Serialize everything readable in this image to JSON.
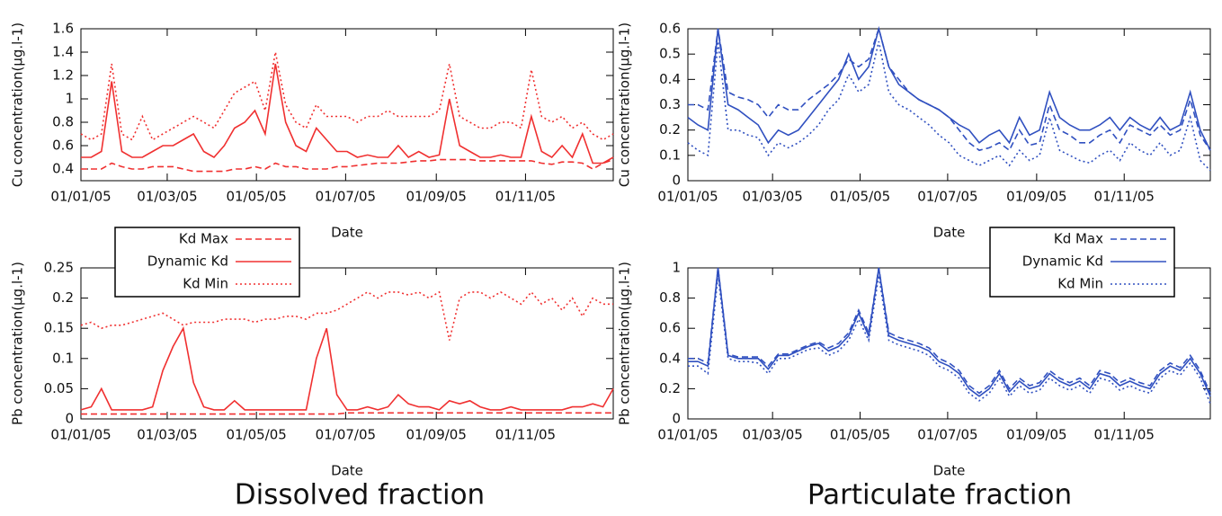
{
  "figure_captions": [
    "Dissolved fraction",
    "Particulate fraction"
  ],
  "chart_data": [
    {
      "type": "line",
      "y_label": "Cu concentration(µg.l-1)",
      "x_label": "Date",
      "x": [
        "01/01/05",
        "08/01/05",
        "15/01/05",
        "22/01/05",
        "29/01/05",
        "05/02/05",
        "12/02/05",
        "19/02/05",
        "26/02/05",
        "05/03/05",
        "12/03/05",
        "19/03/05",
        "26/03/05",
        "02/04/05",
        "09/04/05",
        "16/04/05",
        "23/04/05",
        "30/04/05",
        "07/05/05",
        "14/05/05",
        "21/05/05",
        "28/05/05",
        "04/06/05",
        "11/06/05",
        "18/06/05",
        "25/06/05",
        "02/07/05",
        "09/07/05",
        "16/07/05",
        "23/07/05",
        "30/07/05",
        "06/08/05",
        "13/08/05",
        "20/08/05",
        "27/08/05",
        "03/09/05",
        "10/09/05",
        "17/09/05",
        "24/09/05",
        "01/10/05",
        "08/10/05",
        "15/10/05",
        "22/10/05",
        "29/10/05",
        "05/11/05",
        "12/11/05",
        "19/11/05",
        "26/11/05",
        "03/12/05",
        "10/12/05",
        "17/12/05",
        "24/12/05",
        "31/12/05"
      ],
      "xlim": [
        "01/01/05",
        "31/12/05"
      ],
      "xticks": [
        "01/01/05",
        "01/03/05",
        "01/05/05",
        "01/07/05",
        "01/09/05",
        "01/11/05"
      ],
      "ylim": [
        0.3,
        1.6
      ],
      "yticks": [
        0.4,
        0.6,
        0.8,
        1,
        1.2,
        1.4,
        1.6
      ],
      "series": [
        {
          "name": "Kd Max",
          "color": "#f03030",
          "dash": "dashed",
          "values": [
            0.4,
            0.4,
            0.4,
            0.45,
            0.42,
            0.4,
            0.4,
            0.42,
            0.42,
            0.42,
            0.4,
            0.38,
            0.38,
            0.38,
            0.38,
            0.4,
            0.4,
            0.42,
            0.4,
            0.45,
            0.42,
            0.42,
            0.4,
            0.4,
            0.4,
            0.42,
            0.42,
            0.43,
            0.44,
            0.45,
            0.45,
            0.45,
            0.46,
            0.47,
            0.47,
            0.48,
            0.48,
            0.48,
            0.48,
            0.47,
            0.47,
            0.47,
            0.47,
            0.47,
            0.47,
            0.45,
            0.44,
            0.46,
            0.46,
            0.45,
            0.4,
            0.45,
            0.48
          ]
        },
        {
          "name": "Dynamic Kd",
          "color": "#f03030",
          "dash": "solid",
          "values": [
            0.5,
            0.5,
            0.55,
            1.15,
            0.55,
            0.5,
            0.5,
            0.55,
            0.6,
            0.6,
            0.65,
            0.7,
            0.55,
            0.5,
            0.6,
            0.75,
            0.8,
            0.9,
            0.7,
            1.3,
            0.8,
            0.6,
            0.55,
            0.75,
            0.65,
            0.55,
            0.55,
            0.5,
            0.52,
            0.5,
            0.5,
            0.6,
            0.5,
            0.55,
            0.5,
            0.52,
            1.0,
            0.6,
            0.55,
            0.5,
            0.5,
            0.52,
            0.5,
            0.5,
            0.85,
            0.55,
            0.5,
            0.6,
            0.5,
            0.7,
            0.45,
            0.45,
            0.5
          ]
        },
        {
          "name": "Kd Min",
          "color": "#f03030",
          "dash": "dotted",
          "values": [
            0.7,
            0.65,
            0.7,
            1.3,
            0.7,
            0.65,
            0.85,
            0.65,
            0.7,
            0.75,
            0.8,
            0.85,
            0.8,
            0.75,
            0.9,
            1.05,
            1.1,
            1.15,
            0.9,
            1.4,
            0.95,
            0.8,
            0.75,
            0.95,
            0.85,
            0.85,
            0.85,
            0.8,
            0.85,
            0.85,
            0.9,
            0.85,
            0.85,
            0.85,
            0.85,
            0.9,
            1.3,
            0.85,
            0.8,
            0.75,
            0.75,
            0.8,
            0.8,
            0.75,
            1.25,
            0.85,
            0.8,
            0.85,
            0.75,
            0.8,
            0.7,
            0.65,
            0.7
          ]
        }
      ]
    },
    {
      "type": "line",
      "y_label": "Pb concentration(µg.l-1)",
      "x_label": "Date",
      "legend": "upper left",
      "x": [
        "01/01/05",
        "08/01/05",
        "15/01/05",
        "22/01/05",
        "29/01/05",
        "05/02/05",
        "12/02/05",
        "19/02/05",
        "26/02/05",
        "05/03/05",
        "12/03/05",
        "19/03/05",
        "26/03/05",
        "02/04/05",
        "09/04/05",
        "16/04/05",
        "23/04/05",
        "30/04/05",
        "07/05/05",
        "14/05/05",
        "21/05/05",
        "28/05/05",
        "04/06/05",
        "11/06/05",
        "18/06/05",
        "25/06/05",
        "02/07/05",
        "09/07/05",
        "16/07/05",
        "23/07/05",
        "30/07/05",
        "06/08/05",
        "13/08/05",
        "20/08/05",
        "27/08/05",
        "03/09/05",
        "10/09/05",
        "17/09/05",
        "24/09/05",
        "01/10/05",
        "08/10/05",
        "15/10/05",
        "22/10/05",
        "29/10/05",
        "05/11/05",
        "12/11/05",
        "19/11/05",
        "26/11/05",
        "03/12/05",
        "10/12/05",
        "17/12/05",
        "24/12/05",
        "31/12/05"
      ],
      "xlim": [
        "01/01/05",
        "31/12/05"
      ],
      "xticks": [
        "01/01/05",
        "01/03/05",
        "01/05/05",
        "01/07/05",
        "01/09/05",
        "01/11/05"
      ],
      "ylim": [
        0,
        0.25
      ],
      "yticks": [
        0,
        0.05,
        0.1,
        0.15,
        0.2,
        0.25
      ],
      "series": [
        {
          "name": "Kd Max",
          "color": "#f03030",
          "dash": "dashed",
          "values": [
            0.008,
            0.008,
            0.008,
            0.008,
            0.008,
            0.008,
            0.008,
            0.008,
            0.008,
            0.008,
            0.008,
            0.008,
            0.008,
            0.008,
            0.008,
            0.008,
            0.008,
            0.008,
            0.008,
            0.008,
            0.008,
            0.008,
            0.008,
            0.008,
            0.008,
            0.008,
            0.01,
            0.01,
            0.01,
            0.01,
            0.01,
            0.01,
            0.01,
            0.01,
            0.01,
            0.01,
            0.01,
            0.01,
            0.01,
            0.01,
            0.01,
            0.01,
            0.01,
            0.01,
            0.01,
            0.01,
            0.01,
            0.01,
            0.01,
            0.01,
            0.01,
            0.01,
            0.01
          ]
        },
        {
          "name": "Dynamic Kd",
          "color": "#f03030",
          "dash": "solid",
          "values": [
            0.015,
            0.02,
            0.05,
            0.015,
            0.015,
            0.015,
            0.015,
            0.02,
            0.08,
            0.12,
            0.15,
            0.06,
            0.02,
            0.015,
            0.015,
            0.03,
            0.015,
            0.015,
            0.015,
            0.015,
            0.015,
            0.015,
            0.015,
            0.1,
            0.15,
            0.04,
            0.015,
            0.015,
            0.02,
            0.015,
            0.02,
            0.04,
            0.025,
            0.02,
            0.02,
            0.015,
            0.03,
            0.025,
            0.03,
            0.02,
            0.015,
            0.015,
            0.02,
            0.015,
            0.015,
            0.015,
            0.015,
            0.015,
            0.02,
            0.02,
            0.025,
            0.02,
            0.05
          ]
        },
        {
          "name": "Kd Min",
          "color": "#f03030",
          "dash": "dotted",
          "values": [
            0.155,
            0.16,
            0.15,
            0.155,
            0.155,
            0.16,
            0.165,
            0.17,
            0.175,
            0.165,
            0.155,
            0.16,
            0.16,
            0.16,
            0.165,
            0.165,
            0.165,
            0.16,
            0.165,
            0.165,
            0.17,
            0.17,
            0.165,
            0.175,
            0.175,
            0.18,
            0.19,
            0.2,
            0.21,
            0.2,
            0.21,
            0.21,
            0.205,
            0.21,
            0.2,
            0.21,
            0.13,
            0.2,
            0.21,
            0.21,
            0.2,
            0.21,
            0.2,
            0.19,
            0.21,
            0.19,
            0.2,
            0.18,
            0.2,
            0.17,
            0.2,
            0.19,
            0.19
          ]
        }
      ]
    },
    {
      "type": "line",
      "y_label": "Cu concentration(µg.l-1)",
      "x_label": "Date",
      "x": [
        "01/01/05",
        "08/01/05",
        "15/01/05",
        "22/01/05",
        "29/01/05",
        "05/02/05",
        "12/02/05",
        "19/02/05",
        "26/02/05",
        "05/03/05",
        "12/03/05",
        "19/03/05",
        "26/03/05",
        "02/04/05",
        "09/04/05",
        "16/04/05",
        "23/04/05",
        "30/04/05",
        "07/05/05",
        "14/05/05",
        "21/05/05",
        "28/05/05",
        "04/06/05",
        "11/06/05",
        "18/06/05",
        "25/06/05",
        "02/07/05",
        "09/07/05",
        "16/07/05",
        "23/07/05",
        "30/07/05",
        "06/08/05",
        "13/08/05",
        "20/08/05",
        "27/08/05",
        "03/09/05",
        "10/09/05",
        "17/09/05",
        "24/09/05",
        "01/10/05",
        "08/10/05",
        "15/10/05",
        "22/10/05",
        "29/10/05",
        "05/11/05",
        "12/11/05",
        "19/11/05",
        "26/11/05",
        "03/12/05",
        "10/12/05",
        "17/12/05",
        "24/12/05",
        "31/12/05"
      ],
      "xlim": [
        "01/01/05",
        "31/12/05"
      ],
      "xticks": [
        "01/01/05",
        "01/03/05",
        "01/05/05",
        "01/07/05",
        "01/09/05",
        "01/11/05"
      ],
      "ylim": [
        0,
        0.6
      ],
      "yticks": [
        0,
        0.1,
        0.2,
        0.3,
        0.4,
        0.5,
        0.6
      ],
      "series": [
        {
          "name": "Kd Max",
          "color": "#3050c0",
          "dash": "dashed",
          "values": [
            0.3,
            0.3,
            0.28,
            0.6,
            0.35,
            0.33,
            0.32,
            0.3,
            0.25,
            0.3,
            0.28,
            0.28,
            0.32,
            0.35,
            0.38,
            0.42,
            0.48,
            0.45,
            0.48,
            0.6,
            0.45,
            0.4,
            0.35,
            0.32,
            0.3,
            0.28,
            0.25,
            0.2,
            0.15,
            0.12,
            0.13,
            0.15,
            0.12,
            0.2,
            0.14,
            0.15,
            0.3,
            0.2,
            0.18,
            0.15,
            0.15,
            0.18,
            0.2,
            0.15,
            0.22,
            0.2,
            0.18,
            0.22,
            0.18,
            0.2,
            0.32,
            0.18,
            0.12
          ]
        },
        {
          "name": "Dynamic Kd",
          "color": "#3050c0",
          "dash": "solid",
          "values": [
            0.25,
            0.22,
            0.2,
            0.6,
            0.3,
            0.28,
            0.25,
            0.22,
            0.15,
            0.2,
            0.18,
            0.2,
            0.25,
            0.3,
            0.35,
            0.4,
            0.5,
            0.4,
            0.45,
            0.6,
            0.45,
            0.38,
            0.35,
            0.32,
            0.3,
            0.28,
            0.25,
            0.22,
            0.2,
            0.15,
            0.18,
            0.2,
            0.15,
            0.25,
            0.18,
            0.2,
            0.35,
            0.25,
            0.22,
            0.2,
            0.2,
            0.22,
            0.25,
            0.2,
            0.25,
            0.22,
            0.2,
            0.25,
            0.2,
            0.22,
            0.35,
            0.2,
            0.12
          ]
        },
        {
          "name": "Kd Min",
          "color": "#3050c0",
          "dash": "dotted",
          "values": [
            0.15,
            0.12,
            0.1,
            0.55,
            0.2,
            0.2,
            0.18,
            0.17,
            0.1,
            0.15,
            0.13,
            0.15,
            0.18,
            0.22,
            0.28,
            0.32,
            0.42,
            0.35,
            0.38,
            0.55,
            0.35,
            0.3,
            0.28,
            0.25,
            0.22,
            0.18,
            0.15,
            0.1,
            0.08,
            0.06,
            0.08,
            0.1,
            0.06,
            0.12,
            0.08,
            0.1,
            0.25,
            0.12,
            0.1,
            0.08,
            0.07,
            0.1,
            0.12,
            0.08,
            0.15,
            0.12,
            0.1,
            0.15,
            0.1,
            0.12,
            0.25,
            0.08,
            0.04
          ]
        }
      ]
    },
    {
      "type": "line",
      "y_label": "Pb concentration(µg.l-1)",
      "x_label": "Date",
      "legend": "upper right",
      "x": [
        "01/01/05",
        "08/01/05",
        "15/01/05",
        "22/01/05",
        "29/01/05",
        "05/02/05",
        "12/02/05",
        "19/02/05",
        "26/02/05",
        "05/03/05",
        "12/03/05",
        "19/03/05",
        "26/03/05",
        "02/04/05",
        "09/04/05",
        "16/04/05",
        "23/04/05",
        "30/04/05",
        "07/05/05",
        "14/05/05",
        "21/05/05",
        "28/05/05",
        "04/06/05",
        "11/06/05",
        "18/06/05",
        "25/06/05",
        "02/07/05",
        "09/07/05",
        "16/07/05",
        "23/07/05",
        "30/07/05",
        "06/08/05",
        "13/08/05",
        "20/08/05",
        "27/08/05",
        "03/09/05",
        "10/09/05",
        "17/09/05",
        "24/09/05",
        "01/10/05",
        "08/10/05",
        "15/10/05",
        "22/10/05",
        "29/10/05",
        "05/11/05",
        "12/11/05",
        "19/11/05",
        "26/11/05",
        "03/12/05",
        "10/12/05",
        "17/12/05",
        "24/12/05",
        "31/12/05"
      ],
      "xlim": [
        "01/01/05",
        "31/12/05"
      ],
      "xticks": [
        "01/01/05",
        "01/03/05",
        "01/05/05",
        "01/07/05",
        "01/09/05",
        "01/11/05"
      ],
      "ylim": [
        0,
        1
      ],
      "yticks": [
        0,
        0.2,
        0.4,
        0.6,
        0.8,
        1
      ],
      "series": [
        {
          "name": "Kd Max",
          "color": "#3050c0",
          "dash": "dashed",
          "values": [
            0.4,
            0.4,
            0.37,
            1.0,
            0.43,
            0.41,
            0.41,
            0.41,
            0.35,
            0.43,
            0.43,
            0.46,
            0.49,
            0.51,
            0.47,
            0.5,
            0.57,
            0.72,
            0.57,
            1.0,
            0.57,
            0.54,
            0.52,
            0.5,
            0.47,
            0.4,
            0.37,
            0.32,
            0.22,
            0.17,
            0.22,
            0.32,
            0.2,
            0.27,
            0.22,
            0.24,
            0.32,
            0.27,
            0.24,
            0.27,
            0.22,
            0.32,
            0.3,
            0.24,
            0.27,
            0.24,
            0.22,
            0.32,
            0.37,
            0.34,
            0.42,
            0.32,
            0.17
          ]
        },
        {
          "name": "Dynamic Kd",
          "color": "#3050c0",
          "dash": "solid",
          "values": [
            0.38,
            0.38,
            0.35,
            1.0,
            0.42,
            0.4,
            0.4,
            0.4,
            0.33,
            0.42,
            0.42,
            0.45,
            0.48,
            0.5,
            0.45,
            0.48,
            0.55,
            0.7,
            0.55,
            1.0,
            0.55,
            0.52,
            0.5,
            0.48,
            0.45,
            0.38,
            0.35,
            0.3,
            0.2,
            0.15,
            0.2,
            0.3,
            0.18,
            0.25,
            0.2,
            0.22,
            0.3,
            0.25,
            0.22,
            0.25,
            0.2,
            0.3,
            0.28,
            0.22,
            0.25,
            0.22,
            0.2,
            0.3,
            0.35,
            0.32,
            0.4,
            0.3,
            0.15
          ]
        },
        {
          "name": "Kd Min",
          "color": "#3050c0",
          "dash": "dotted",
          "values": [
            0.35,
            0.35,
            0.3,
            0.95,
            0.4,
            0.38,
            0.38,
            0.37,
            0.3,
            0.4,
            0.4,
            0.43,
            0.46,
            0.47,
            0.42,
            0.45,
            0.52,
            0.66,
            0.52,
            0.95,
            0.52,
            0.49,
            0.47,
            0.45,
            0.42,
            0.35,
            0.32,
            0.27,
            0.17,
            0.12,
            0.17,
            0.27,
            0.15,
            0.22,
            0.17,
            0.19,
            0.27,
            0.22,
            0.19,
            0.22,
            0.17,
            0.27,
            0.25,
            0.19,
            0.22,
            0.19,
            0.17,
            0.27,
            0.32,
            0.29,
            0.37,
            0.27,
            0.1
          ]
        }
      ]
    }
  ]
}
